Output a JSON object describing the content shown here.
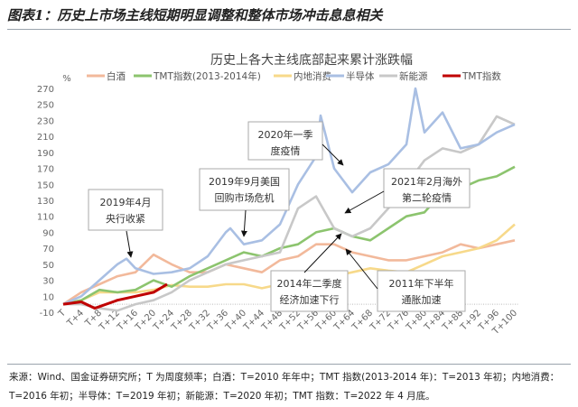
{
  "figure_title": "图表1：历史上市场主线短期明显调整和整体市场冲击息息相关",
  "footnote": [
    "来源：Wind、国金证券研究所；T 为周度频率；白酒：T=2010 年年中；TMT 指数(2013-2014 年)：T=2013 年初；内地消费：",
    "T=2016 年初；半导体：T=2019 年初；新能源：T=2020 年初；TMT 指数：T=2022 年 4 月底。"
  ],
  "chart_data": {
    "type": "line",
    "title": "历史上各大主线底部起来累计涨跌幅",
    "ylabel": "%",
    "ylim": [
      -10,
      270
    ],
    "yticks": [
      -10,
      10,
      30,
      50,
      70,
      90,
      110,
      130,
      150,
      170,
      190,
      210,
      230,
      250,
      270
    ],
    "xticks": [
      "T",
      "T+4",
      "T+8",
      "T+12",
      "T+16",
      "T+20",
      "T+24",
      "T+28",
      "T+32",
      "T+36",
      "T+40",
      "T+44",
      "T+48",
      "T+52",
      "T+56",
      "T+60",
      "T+64",
      "T+68",
      "T+72",
      "T+76",
      "T+80",
      "T+84",
      "T+88",
      "T+92",
      "T+96",
      "T+100"
    ],
    "legend_position": "top",
    "grid": false,
    "series": [
      {
        "name": "白酒",
        "color": "#f2b99b",
        "x": [
          0,
          4,
          8,
          12,
          16,
          20,
          24,
          28,
          32,
          36,
          40,
          44,
          48,
          52,
          56,
          60,
          64,
          68,
          72,
          76,
          80,
          84,
          88,
          92,
          96,
          100
        ],
        "values": [
          0,
          15,
          25,
          35,
          40,
          62,
          50,
          40,
          40,
          50,
          45,
          40,
          55,
          60,
          75,
          75,
          65,
          60,
          55,
          55,
          60,
          65,
          75,
          70,
          75,
          80
        ]
      },
      {
        "name": "TMT指数(2013-2014年)",
        "color": "#8cc46e",
        "x": [
          0,
          4,
          8,
          12,
          16,
          20,
          24,
          28,
          32,
          36,
          40,
          44,
          48,
          52,
          56,
          60,
          64,
          68,
          72,
          76,
          80,
          84,
          88,
          92,
          96,
          100
        ],
        "values": [
          0,
          5,
          18,
          15,
          18,
          30,
          22,
          35,
          45,
          55,
          65,
          60,
          70,
          75,
          90,
          95,
          85,
          80,
          95,
          110,
          115,
          140,
          145,
          155,
          160,
          172
        ]
      },
      {
        "name": "内地消费",
        "color": "#f7d98a",
        "x": [
          0,
          4,
          8,
          12,
          16,
          20,
          24,
          28,
          32,
          36,
          40,
          44,
          48,
          52,
          56,
          60,
          64,
          68,
          72,
          76,
          80,
          84,
          88,
          92,
          96,
          100
        ],
        "values": [
          0,
          5,
          15,
          15,
          15,
          18,
          24,
          22,
          22,
          25,
          25,
          20,
          25,
          28,
          30,
          35,
          40,
          45,
          42,
          40,
          50,
          60,
          65,
          70,
          80,
          100
        ]
      },
      {
        "name": "半导体",
        "color": "#a9bfe3",
        "x": [
          0,
          4,
          8,
          12,
          14,
          16,
          20,
          24,
          28,
          32,
          36,
          37,
          40,
          44,
          48,
          52,
          56,
          57,
          60,
          64,
          68,
          72,
          76,
          78,
          80,
          84,
          88,
          92,
          96,
          100
        ],
        "values": [
          0,
          10,
          30,
          50,
          57,
          45,
          38,
          40,
          45,
          60,
          90,
          95,
          75,
          80,
          100,
          150,
          185,
          236,
          170,
          140,
          165,
          175,
          200,
          270,
          215,
          240,
          195,
          200,
          215,
          225
        ]
      },
      {
        "name": "新能源",
        "color": "#c8c8c8",
        "x": [
          0,
          4,
          8,
          12,
          16,
          20,
          24,
          28,
          32,
          36,
          40,
          44,
          48,
          52,
          56,
          60,
          64,
          68,
          72,
          76,
          80,
          84,
          88,
          92,
          96,
          100
        ],
        "values": [
          0,
          0,
          -5,
          -8,
          0,
          5,
          15,
          30,
          40,
          50,
          55,
          60,
          65,
          120,
          135,
          95,
          85,
          95,
          120,
          150,
          180,
          195,
          190,
          200,
          235,
          225
        ]
      },
      {
        "name": "TMT指数",
        "color": "#c00000",
        "x": [
          0,
          4,
          7,
          12,
          16,
          20,
          23
        ],
        "values": [
          0,
          3,
          -5,
          5,
          10,
          15,
          25
        ]
      }
    ],
    "annotations": [
      {
        "text": [
          "2019年4月",
          "央行收紧"
        ]
      },
      {
        "text": [
          "2019年9月美国",
          "回购市场危机"
        ]
      },
      {
        "text": [
          "2020年一季",
          "度疫情"
        ]
      },
      {
        "text": [
          "2021年2月海外",
          "第二轮疫情"
        ]
      },
      {
        "text": [
          "2014年二季度",
          "经济加速下行"
        ]
      },
      {
        "text": [
          "2011年下半年",
          "通胀加速"
        ]
      }
    ]
  }
}
